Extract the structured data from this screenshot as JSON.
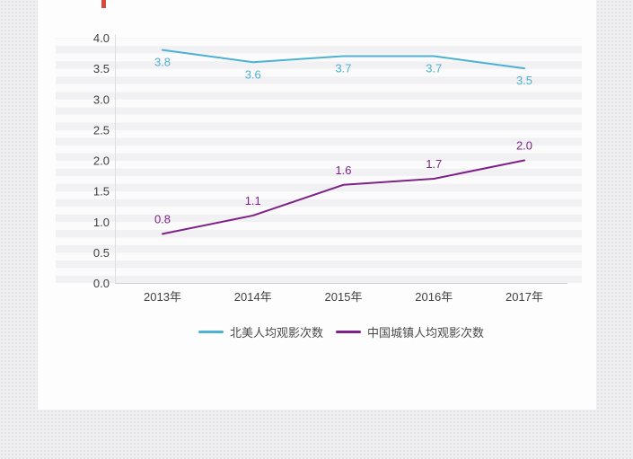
{
  "chart_data": {
    "type": "line",
    "categories": [
      "2013年",
      "2014年",
      "2015年",
      "2016年",
      "2017年"
    ],
    "series": [
      {
        "name": "北美人均观影次数",
        "color": "#4cb1d3",
        "values": [
          3.8,
          3.6,
          3.7,
          3.7,
          3.5
        ],
        "label_position": "below"
      },
      {
        "name": "中国城镇人均观影次数",
        "color": "#7e2287",
        "values": [
          0.8,
          1.1,
          1.6,
          1.7,
          2.0
        ],
        "label_position": "above"
      }
    ],
    "y_ticks": [
      "4.0",
      "3.5",
      "3.0",
      "2.5",
      "2.0",
      "1.5",
      "1.0",
      "0.5",
      "0.0"
    ],
    "ylim": [
      0,
      4
    ],
    "xlabel": "",
    "ylabel": "",
    "title": "",
    "grid": "horizontal-stripes",
    "legend_position": "bottom",
    "colors": {
      "axis_line": "#cfcfcf",
      "stripe_gray": "#f1f1f4",
      "stripe_white": "#fbfbfc",
      "tick_text": "#3f3f3f"
    }
  }
}
